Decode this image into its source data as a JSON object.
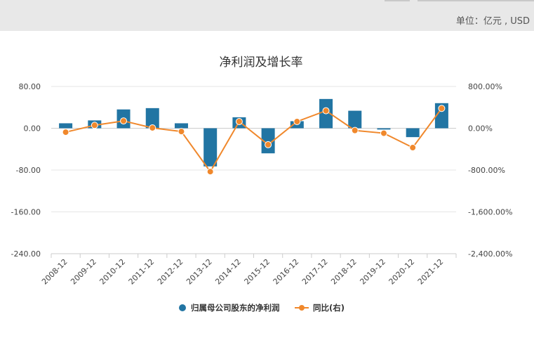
{
  "header": {
    "unit_label": "单位：亿元 , USD"
  },
  "chart_data": {
    "type": "bar+line",
    "title": "净利润及增长率",
    "categories": [
      "2008-12",
      "2009-12",
      "2010-12",
      "2011-12",
      "2012-12",
      "2013-12",
      "2014-12",
      "2015-12",
      "2016-12",
      "2017-12",
      "2018-12",
      "2019-12",
      "2020-12",
      "2021-12"
    ],
    "series": [
      {
        "name": "归属母公司股东的净利润",
        "type": "bar",
        "axis": "left",
        "color": "#2275a3",
        "values": [
          9.5,
          15,
          36,
          38.5,
          9.5,
          -73,
          21,
          -48,
          13.5,
          56,
          33.5,
          -2.5,
          -17,
          48
        ]
      },
      {
        "name": "同比(右)",
        "type": "line",
        "axis": "right",
        "color": "#f0882c",
        "values": [
          -75,
          57,
          140,
          7,
          -63,
          -830,
          128,
          -315,
          128,
          335,
          -42,
          -95,
          -370,
          380
        ]
      }
    ],
    "y_left": {
      "min": -240,
      "max": 80,
      "ticks": [
        "80.00",
        "0.00",
        "-80.00",
        "-160.00",
        "-240.00"
      ],
      "tick_values": [
        80,
        0,
        -80,
        -160,
        -240
      ]
    },
    "y_right": {
      "min": -2400,
      "max": 800,
      "ticks": [
        "800.00%",
        "0.00%",
        "-800.00%",
        "-1,600.00%",
        "-2,400.00%"
      ],
      "tick_values": [
        800,
        0,
        -800,
        -1600,
        -2400
      ]
    },
    "grid": true,
    "legend_position": "bottom"
  }
}
